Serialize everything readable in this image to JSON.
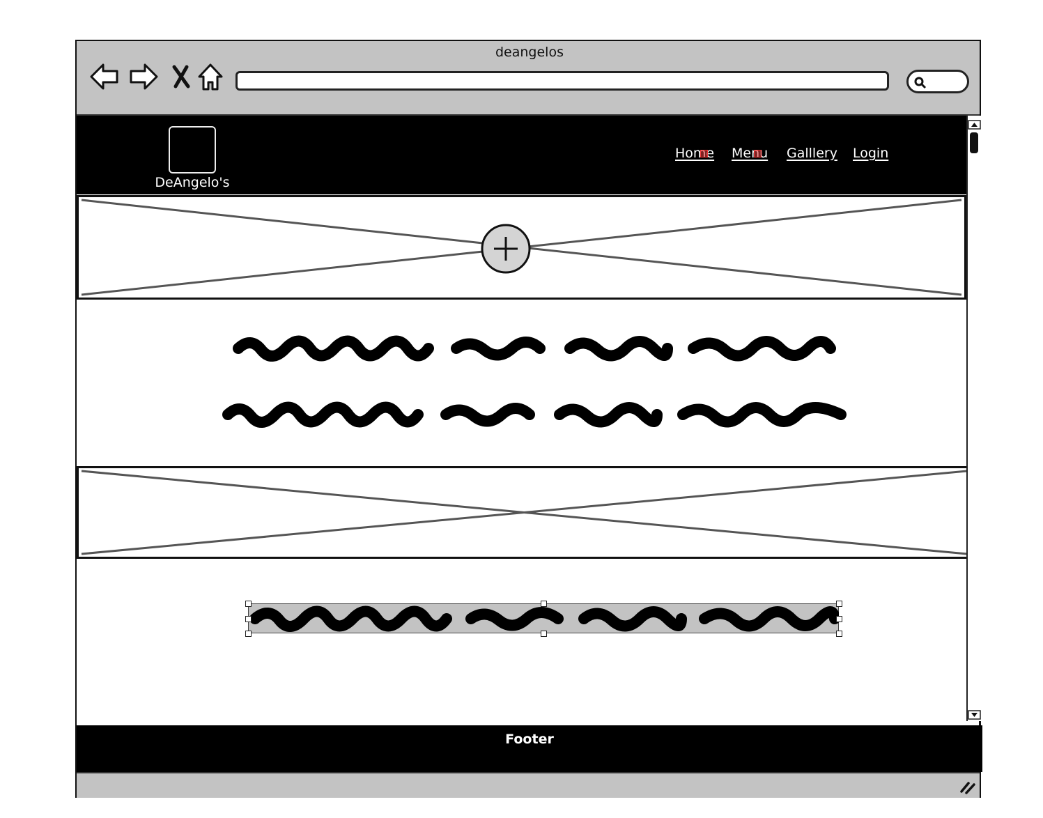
{
  "browser": {
    "title": "deangelos",
    "url": "",
    "search_placeholder": "",
    "icons": [
      "back-arrow-icon",
      "forward-arrow-icon",
      "stop-icon",
      "home-icon",
      "search-icon"
    ]
  },
  "site": {
    "logo_text": "DeAngelo's",
    "nav": [
      {
        "label": "Home"
      },
      {
        "label": "Menu"
      },
      {
        "label": "Galllery"
      },
      {
        "label": "Login"
      }
    ],
    "footer": "Footer"
  },
  "colors": {
    "header_bg": "#000000",
    "chrome_gray": "#c3c3c3",
    "warning_red": "#e33c3c",
    "placeholder_line": "#555555"
  }
}
